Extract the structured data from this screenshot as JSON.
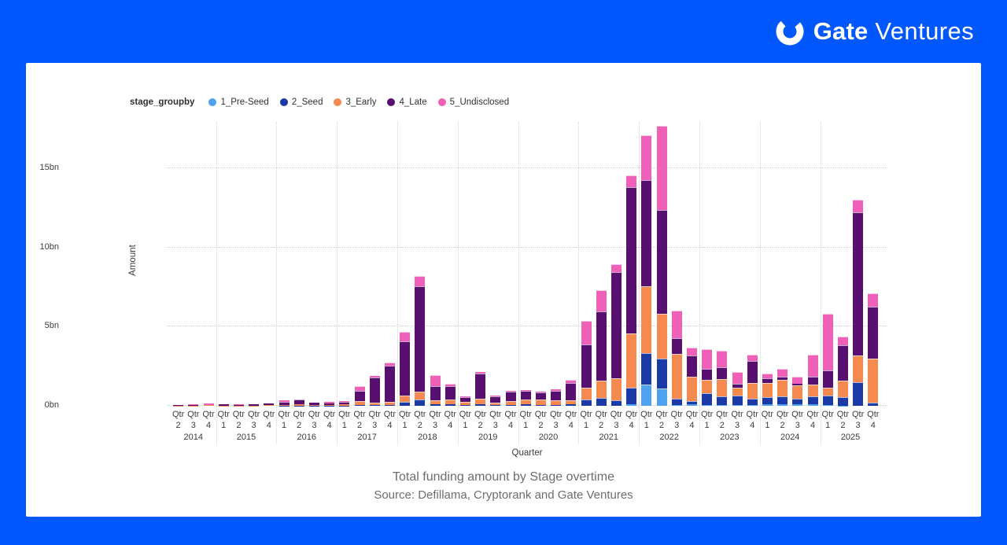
{
  "page": {
    "background": "#0057FB",
    "card_background": "#FFFFFF"
  },
  "logo": {
    "brand": "Gate",
    "suffix": "Ventures"
  },
  "legend": {
    "title": "stage_groupby",
    "items": [
      {
        "label": "1_Pre-Seed",
        "color": "#4FA3EE"
      },
      {
        "label": "2_Seed",
        "color": "#1C3AA5"
      },
      {
        "label": "3_Early",
        "color": "#F58A50"
      },
      {
        "label": "4_Late",
        "color": "#570F70"
      },
      {
        "label": "5_Undisclosed",
        "color": "#EF60B8"
      }
    ]
  },
  "chart_data": {
    "type": "bar",
    "stacked": true,
    "title": "Total funding amount by Stage overtime",
    "subtitle": "Source: Defillama, Cryptorank and Gate Ventures",
    "xlabel": "Quarter",
    "ylabel": "Amount",
    "x_tick_word": "Qtr",
    "ylim": [
      0,
      18
    ],
    "yticks": [
      {
        "value": 0,
        "label": "0bn"
      },
      {
        "value": 5,
        "label": "5bn"
      },
      {
        "value": 10,
        "label": "10bn"
      },
      {
        "value": 15,
        "label": "15bn"
      }
    ],
    "legend_position": "top",
    "grid": "dotted-horizontal",
    "series": [
      "1_Pre-Seed",
      "2_Seed",
      "3_Early",
      "4_Late",
      "5_Undisclosed"
    ],
    "colors": [
      "#4FA3EE",
      "#1C3AA5",
      "#F58A50",
      "#570F70",
      "#EF60B8"
    ],
    "values_unit": "bn",
    "quarters": [
      {
        "year": 2014,
        "q": 2,
        "values": [
          0,
          0,
          0.01,
          0.02,
          0.02
        ]
      },
      {
        "year": 2014,
        "q": 3,
        "values": [
          0,
          0,
          0.02,
          0.03,
          0.05
        ]
      },
      {
        "year": 2014,
        "q": 4,
        "values": [
          0,
          0,
          0.03,
          0.04,
          0.06
        ]
      },
      {
        "year": 2015,
        "q": 1,
        "values": [
          0,
          0,
          0.02,
          0.08,
          0.02
        ]
      },
      {
        "year": 2015,
        "q": 2,
        "values": [
          0,
          0,
          0.02,
          0.03,
          0.05
        ]
      },
      {
        "year": 2015,
        "q": 3,
        "values": [
          0,
          0,
          0.02,
          0.06,
          0.02
        ]
      },
      {
        "year": 2015,
        "q": 4,
        "values": [
          0,
          0,
          0.03,
          0.1,
          0.03
        ]
      },
      {
        "year": 2016,
        "q": 1,
        "values": [
          0,
          0.02,
          0.05,
          0.16,
          0.1
        ]
      },
      {
        "year": 2016,
        "q": 2,
        "values": [
          0,
          0.02,
          0.06,
          0.3,
          0.03
        ]
      },
      {
        "year": 2016,
        "q": 3,
        "values": [
          0,
          0.01,
          0.04,
          0.13,
          0.03
        ]
      },
      {
        "year": 2016,
        "q": 4,
        "values": [
          0,
          0.01,
          0.05,
          0.08,
          0.11
        ]
      },
      {
        "year": 2017,
        "q": 1,
        "values": [
          0,
          0.02,
          0.06,
          0.18,
          0.04
        ]
      },
      {
        "year": 2017,
        "q": 2,
        "values": [
          0,
          0.03,
          0.25,
          0.68,
          0.3
        ]
      },
      {
        "year": 2017,
        "q": 3,
        "values": [
          0,
          0.05,
          0.15,
          1.6,
          0.1
        ]
      },
      {
        "year": 2017,
        "q": 4,
        "values": [
          0,
          0.05,
          0.2,
          2.3,
          0.2
        ]
      },
      {
        "year": 2018,
        "q": 1,
        "values": [
          0,
          0.26,
          0.37,
          3.43,
          0.6
        ]
      },
      {
        "year": 2018,
        "q": 2,
        "values": [
          0,
          0.38,
          0.5,
          6.7,
          0.62
        ]
      },
      {
        "year": 2018,
        "q": 3,
        "values": [
          0,
          0.1,
          0.27,
          0.88,
          0.7
        ]
      },
      {
        "year": 2018,
        "q": 4,
        "values": [
          0,
          0.1,
          0.3,
          0.85,
          0.15
        ]
      },
      {
        "year": 2019,
        "q": 1,
        "values": [
          0,
          0.05,
          0.18,
          0.3,
          0.05
        ]
      },
      {
        "year": 2019,
        "q": 2,
        "values": [
          0,
          0.1,
          0.35,
          1.6,
          0.1
        ]
      },
      {
        "year": 2019,
        "q": 3,
        "values": [
          0,
          0.05,
          0.15,
          0.41,
          0.05
        ]
      },
      {
        "year": 2019,
        "q": 4,
        "values": [
          0,
          0.05,
          0.25,
          0.61,
          0.05
        ]
      },
      {
        "year": 2020,
        "q": 1,
        "values": [
          0,
          0.08,
          0.3,
          0.57,
          0.05
        ]
      },
      {
        "year": 2020,
        "q": 2,
        "values": [
          0,
          0.05,
          0.35,
          0.43,
          0.05
        ]
      },
      {
        "year": 2020,
        "q": 3,
        "values": [
          0,
          0.05,
          0.3,
          0.61,
          0.08
        ]
      },
      {
        "year": 2020,
        "q": 4,
        "values": [
          0,
          0.1,
          0.25,
          1.08,
          0.2
        ]
      },
      {
        "year": 2021,
        "q": 1,
        "values": [
          0,
          0.41,
          0.75,
          2.74,
          1.49
        ]
      },
      {
        "year": 2021,
        "q": 2,
        "values": [
          0,
          0.5,
          1.08,
          4.4,
          1.32
        ]
      },
      {
        "year": 2021,
        "q": 3,
        "values": [
          0,
          0.33,
          1.41,
          6.72,
          0.5
        ]
      },
      {
        "year": 2021,
        "q": 4,
        "values": [
          0.1,
          1.06,
          3.4,
          9.24,
          0.76
        ]
      },
      {
        "year": 2022,
        "q": 1,
        "values": [
          1.33,
          1.99,
          4.23,
          6.72,
          2.85
        ]
      },
      {
        "year": 2022,
        "q": 2,
        "values": [
          1.08,
          1.91,
          2.85,
          6.52,
          5.34
        ]
      },
      {
        "year": 2022,
        "q": 3,
        "values": [
          0.05,
          0.4,
          2.82,
          1.0,
          1.74
        ]
      },
      {
        "year": 2022,
        "q": 4,
        "values": [
          0.08,
          0.2,
          1.58,
          1.33,
          0.5
        ]
      },
      {
        "year": 2023,
        "q": 1,
        "values": [
          0.05,
          0.73,
          0.88,
          0.67,
          1.25
        ]
      },
      {
        "year": 2023,
        "q": 2,
        "values": [
          0.07,
          0.53,
          1.08,
          0.75,
          1.03
        ]
      },
      {
        "year": 2023,
        "q": 3,
        "values": [
          0.05,
          0.58,
          0.5,
          0.25,
          0.75
        ]
      },
      {
        "year": 2023,
        "q": 4,
        "values": [
          0.05,
          0.38,
          1.0,
          1.41,
          0.38
        ]
      },
      {
        "year": 2024,
        "q": 1,
        "values": [
          0.08,
          0.45,
          0.92,
          0.3,
          0.28
        ]
      },
      {
        "year": 2024,
        "q": 2,
        "values": [
          0.08,
          0.5,
          1.05,
          0.2,
          0.5
        ]
      },
      {
        "year": 2024,
        "q": 3,
        "values": [
          0.12,
          0.35,
          0.83,
          0.1,
          0.43
        ]
      },
      {
        "year": 2024,
        "q": 4,
        "values": [
          0.1,
          0.5,
          0.75,
          0.5,
          1.4
        ]
      },
      {
        "year": 2025,
        "q": 1,
        "values": [
          0.05,
          0.6,
          0.5,
          1.1,
          3.55
        ]
      },
      {
        "year": 2025,
        "q": 2,
        "values": [
          0.02,
          0.55,
          1.0,
          2.25,
          0.58
        ]
      },
      {
        "year": 2025,
        "q": 3,
        "values": [
          0,
          1.5,
          1.66,
          9.07,
          0.82
        ]
      },
      {
        "year": 2025,
        "q": 4,
        "values": [
          0,
          0.22,
          2.76,
          3.27,
          0.84
        ]
      }
    ]
  }
}
